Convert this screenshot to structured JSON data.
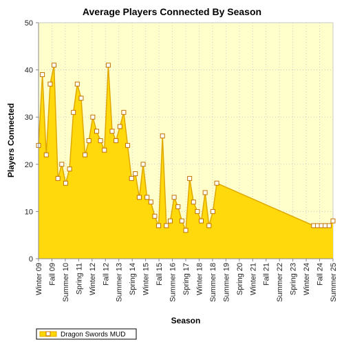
{
  "chart_data": {
    "type": "area",
    "title": "Average Players Connected By Season",
    "xlabel": "Season",
    "ylabel": "Players Connected",
    "ylim": [
      0,
      50
    ],
    "yticks": [
      0,
      10,
      20,
      30,
      40,
      50
    ],
    "grid": true,
    "legend_position": "bottom-left",
    "x_tick_labels": [
      "Winter 09",
      "Fall 09",
      "Summer 10",
      "Spring 11",
      "Winter 12",
      "Fall 12",
      "Summer 13",
      "Spring 14",
      "Winter 15",
      "Fall 15",
      "Summer 16",
      "Spring 17",
      "Winter 18",
      "Summer 18",
      "Summer 19",
      "Spring 20",
      "Winter 21",
      "Fall 21",
      "Summer 22",
      "Spring 23",
      "Winter 24",
      "Fall 24",
      "Summer 25"
    ],
    "series": [
      {
        "name": "Dragon Swords MUD",
        "color": "#ffd700",
        "line_color": "#e0a800",
        "marker": "square",
        "values": [
          24,
          39,
          22,
          37,
          41,
          17,
          20,
          16,
          19,
          31,
          37,
          34,
          22,
          25,
          30,
          27,
          25,
          23,
          41,
          27,
          25,
          28,
          31,
          24,
          17,
          18,
          13,
          20,
          13,
          12,
          9,
          7,
          26,
          7,
          8,
          13,
          11,
          8,
          6,
          17,
          12,
          10,
          8,
          14,
          7,
          10,
          16,
          null,
          null,
          null,
          null,
          null,
          null,
          null,
          null,
          null,
          null,
          null,
          null,
          null,
          null,
          null,
          null,
          null,
          null,
          null,
          null,
          null,
          null,
          null,
          null,
          7,
          7,
          7,
          7,
          7,
          8
        ]
      }
    ]
  }
}
